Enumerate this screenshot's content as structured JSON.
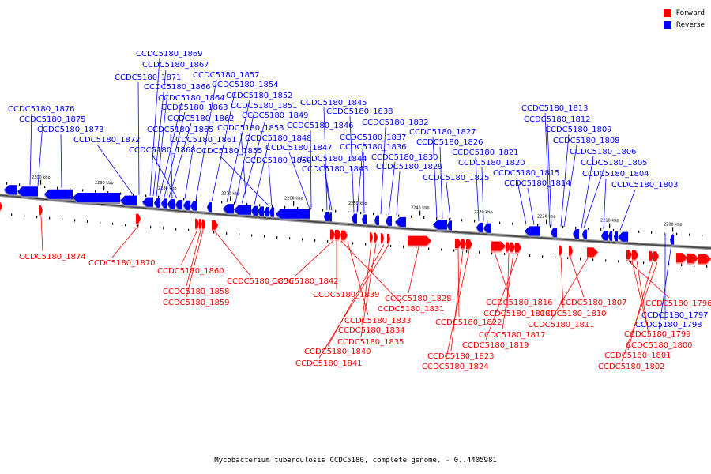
{
  "legend": [
    {
      "label": "Forward",
      "color": "#ff0000"
    },
    {
      "label": "Reverse",
      "color": "#0000ff"
    }
  ],
  "caption": "Mycobacterium tuberculosis CCDC5180, complete genome. - 0..4405981",
  "ticks": [
    "2300 kbp",
    "2290 kbp",
    "2280 kbp",
    "2270 kbp",
    "2260 kbp",
    "2250 kbp",
    "2240 kbp",
    "2230 kbp",
    "2220 kbp",
    "2210 kbp",
    "2200 kbp"
  ],
  "reverse_genes": [
    "CCDC5180_1876",
    "CCDC5180_1875",
    "CCDC5180_1873",
    "CCDC5180_1872",
    "CCDC5180_1871",
    "CCDC5180_1869",
    "CCDC5180_1867",
    "CCDC5180_1866",
    "CCDC5180_1864",
    "CCDC5180_1863",
    "CCDC5180_1862",
    "CCDC5180_1865",
    "CCDC5180_1868",
    "CCDC5180_1861",
    "CCDC5180_1857",
    "CCDC5180_1854",
    "CCDC5180_1852",
    "CCDC5180_1851",
    "CCDC5180_1849",
    "CCDC5180_1853",
    "CCDC5180_1848",
    "CCDC5180_1855",
    "CCDC5180_1850",
    "CCDC5180_1847",
    "CCDC5180_1846",
    "CCDC5180_1845",
    "CCDC5180_1844",
    "CCDC5180_1843",
    "CCDC5180_1838",
    "CCDC5180_1837",
    "CCDC5180_1836",
    "CCDC5180_1832",
    "CCDC5180_1830",
    "CCDC5180_1829",
    "CCDC5180_1827",
    "CCDC5180_1826",
    "CCDC5180_1825",
    "CCDC5180_1821",
    "CCDC5180_1820",
    "CCDC5180_1815",
    "CCDC5180_1814",
    "CCDC5180_1813",
    "CCDC5180_1812",
    "CCDC5180_1809",
    "CCDC5180_1808",
    "CCDC5180_1806",
    "CCDC5180_1805",
    "CCDC5180_1804",
    "CCDC5180_1803",
    "CCDC5180_1797",
    "CCDC5180_1798"
  ],
  "forward_genes": [
    "CCDC5180_1874",
    "CCDC5180_1870",
    "CCDC5180_1860",
    "CCDC5180_1858",
    "CCDC5180_1859",
    "CCDC5180_1856",
    "CCDC5180_1842",
    "CCDC5180_1839",
    "CCDC5180_1831",
    "CCDC5180_1833",
    "CCDC5180_1834",
    "CCDC5180_1835",
    "CCDC5180_1840",
    "CCDC5180_1841",
    "CCDC5180_1828",
    "CCDC5180_1822",
    "CCDC5180_1823",
    "CCDC5180_1824",
    "CCDC5180_1816",
    "CCDC5180_1818",
    "CCDC5180_1817",
    "CCDC5180_1819",
    "CCDC5180_1807",
    "CCDC5180_1810",
    "CCDC5180_1811",
    "CCDC5180_1796",
    "CCDC5180_1799",
    "CCDC5180_1800",
    "CCDC5180_1801",
    "CCDC5180_1802"
  ]
}
